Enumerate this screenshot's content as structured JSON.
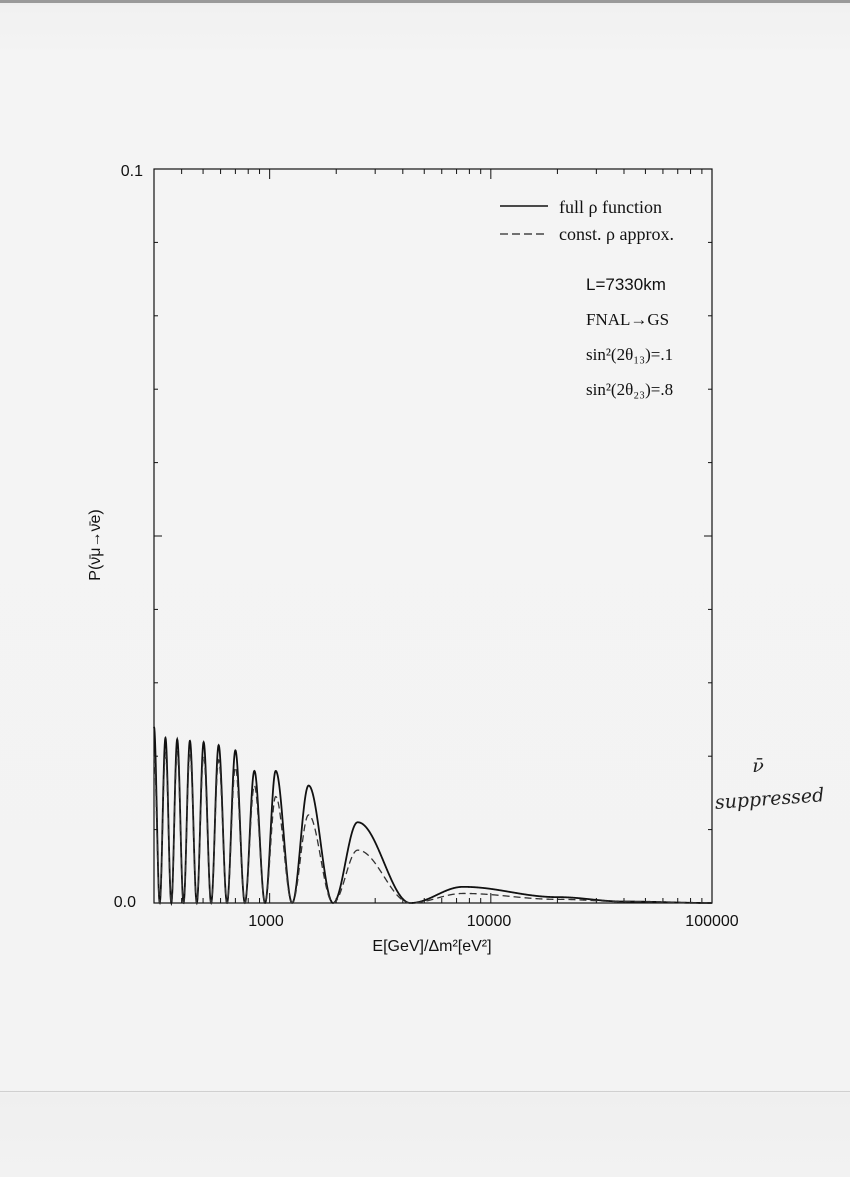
{
  "chart_data": {
    "type": "line",
    "x_scale": "log",
    "xlim": [
      300,
      100000
    ],
    "ylim": [
      0.0,
      0.1
    ],
    "x_tick_labels": [
      "1000",
      "10000",
      "100000"
    ],
    "y_tick_labels": [
      "0.0",
      "0.1"
    ],
    "xlabel": "E[GeV]/Δm²[eV²]",
    "ylabel": "P(ν̄μ→ν̄e)",
    "legend_position": "top-right",
    "grid": false,
    "series": [
      {
        "name": "full ρ function",
        "style": "solid",
        "peaks": [
          {
            "x": 300,
            "y": 0.024
          },
          {
            "x": 338,
            "y": 0.0225
          },
          {
            "x": 382,
            "y": 0.0223
          },
          {
            "x": 436,
            "y": 0.0221
          },
          {
            "x": 503,
            "y": 0.0219
          },
          {
            "x": 588,
            "y": 0.0215
          },
          {
            "x": 700,
            "y": 0.0208
          },
          {
            "x": 853,
            "y": 0.018
          },
          {
            "x": 1065,
            "y": 0.018
          },
          {
            "x": 1500,
            "y": 0.016
          },
          {
            "x": 2500,
            "y": 0.011
          },
          {
            "x": 7500,
            "y": 0.0022
          }
        ],
        "tail": [
          {
            "x": 20000,
            "y": 0.0008
          },
          {
            "x": 40000,
            "y": 0.0002
          },
          {
            "x": 100000,
            "y": 0.0
          }
        ]
      },
      {
        "name": "const. ρ approx.",
        "style": "dashed",
        "peaks": [
          {
            "x": 300,
            "y": 0.02
          },
          {
            "x": 338,
            "y": 0.0205
          },
          {
            "x": 382,
            "y": 0.0205
          },
          {
            "x": 436,
            "y": 0.0205
          },
          {
            "x": 503,
            "y": 0.02
          },
          {
            "x": 588,
            "y": 0.0195
          },
          {
            "x": 700,
            "y": 0.0185
          },
          {
            "x": 853,
            "y": 0.016
          },
          {
            "x": 1065,
            "y": 0.0145
          },
          {
            "x": 1500,
            "y": 0.012
          },
          {
            "x": 2500,
            "y": 0.0072
          },
          {
            "x": 7500,
            "y": 0.0013
          }
        ],
        "tail": [
          {
            "x": 20000,
            "y": 0.0005
          },
          {
            "x": 40000,
            "y": 0.0002
          },
          {
            "x": 100000,
            "y": 0.0
          }
        ]
      }
    ],
    "annotations": {
      "baseline": "L=7330km",
      "beam": "FNAL→GS",
      "sin13": "sin²(2θ₁₃)=.1",
      "sin23": "sin²(2θ₂₃)=.8"
    }
  },
  "handwritten_note": {
    "symbol": "ν̄",
    "word": "suppressed"
  }
}
